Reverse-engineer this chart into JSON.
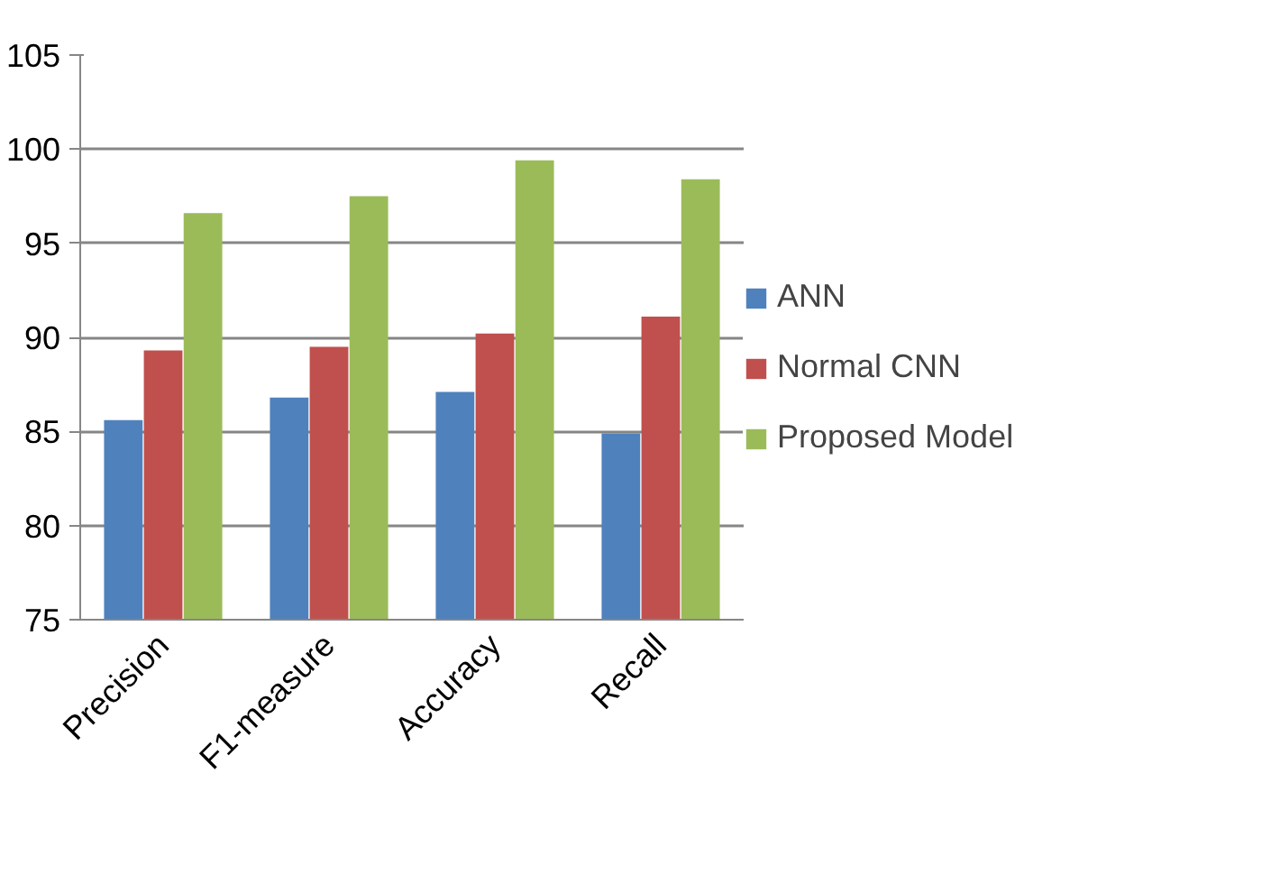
{
  "chart_data": {
    "type": "bar",
    "categories": [
      "Precision",
      "F1-measure",
      "Accuracy",
      "Recall"
    ],
    "series": [
      {
        "name": "ANN",
        "color": "#4f81bd",
        "values": [
          85.6,
          86.8,
          87.1,
          84.9
        ]
      },
      {
        "name": "Normal CNN",
        "color": "#c0504d",
        "values": [
          89.3,
          89.5,
          90.2,
          91.1
        ]
      },
      {
        "name": "Proposed Model",
        "color": "#9bbb59",
        "values": [
          96.6,
          97.5,
          99.4,
          98.4
        ]
      }
    ],
    "ylim": [
      75,
      105
    ],
    "yticks": [
      75,
      80,
      85,
      90,
      95,
      100,
      105
    ],
    "grid": "y",
    "legend": "right"
  }
}
